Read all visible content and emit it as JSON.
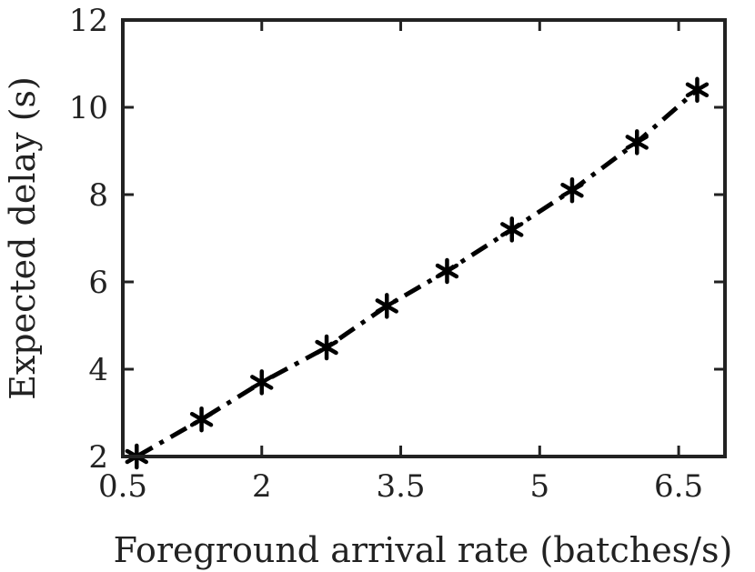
{
  "chart_data": {
    "type": "line",
    "title": "",
    "xlabel": "Foreground arrival rate (batches/s)",
    "ylabel": "Expected delay (s)",
    "xlim": [
      0.5,
      7
    ],
    "ylim": [
      2,
      12
    ],
    "xticks": [
      0.5,
      2,
      3.5,
      5,
      6.5
    ],
    "xtick_labels": [
      "0.5",
      "2",
      "3.5",
      "5",
      "6.5"
    ],
    "yticks": [
      2,
      4,
      6,
      8,
      10,
      12
    ],
    "ytick_labels": [
      "2",
      "4",
      "6",
      "8",
      "10",
      "12"
    ],
    "grid": false,
    "legend": "none",
    "series": [
      {
        "x": [
          0.65,
          1.35,
          2.0,
          2.7,
          3.35,
          4.0,
          4.7,
          5.35,
          6.05,
          6.7
        ],
        "y": [
          2.0,
          2.85,
          3.7,
          4.5,
          5.45,
          6.25,
          7.2,
          8.1,
          9.2,
          10.4
        ],
        "color": "#000000",
        "line_style": "dash-dot",
        "marker": "asterisk"
      }
    ]
  }
}
